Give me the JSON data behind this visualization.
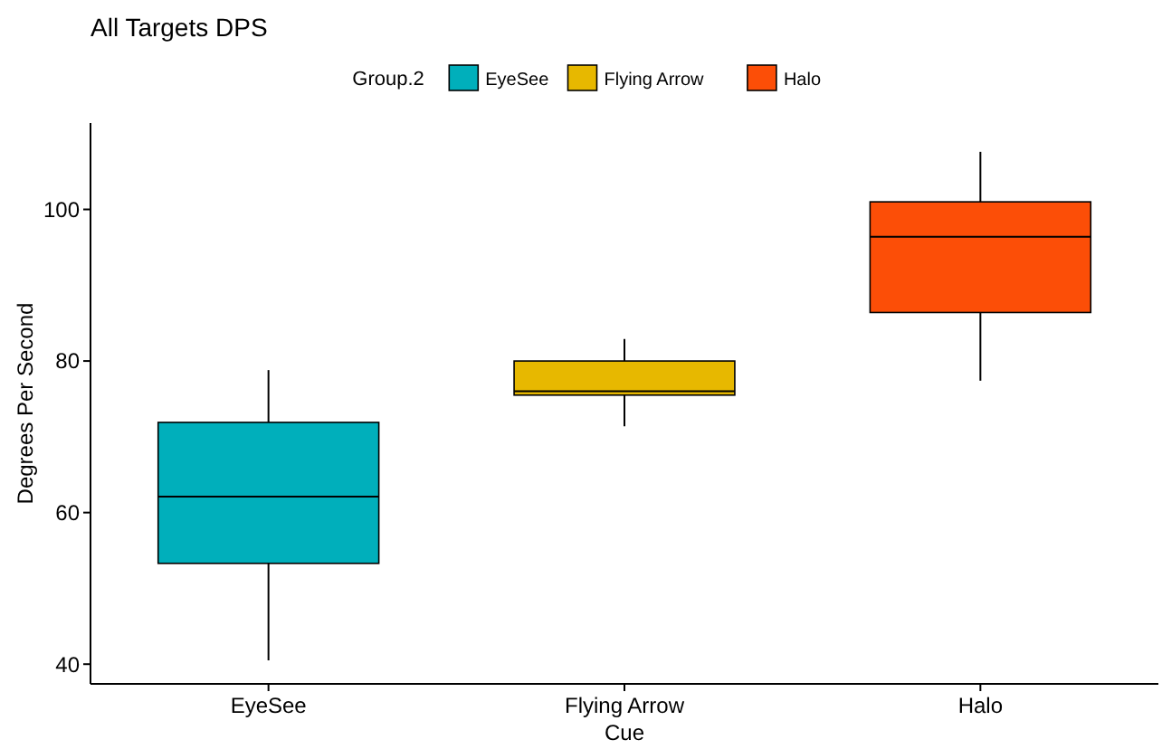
{
  "chart_data": {
    "type": "box",
    "title": "All Targets DPS",
    "xlabel": "Cue",
    "ylabel": "Degrees Per Second",
    "legend_title": "Group.2",
    "legend": "top",
    "grid": false,
    "categories": [
      "EyeSee",
      "Flying Arrow",
      "Halo"
    ],
    "series": [
      {
        "name": "EyeSee",
        "color": "#00afbb",
        "boxes": [
          {
            "low": 40.5,
            "q1": 53.3,
            "median": 62.1,
            "q3": 71.9,
            "high": 78.8
          },
          null,
          null
        ]
      },
      {
        "name": "Flying Arrow",
        "color": "#e7b800",
        "boxes": [
          null,
          {
            "low": 71.4,
            "q1": 75.5,
            "median": 76,
            "q3": 80,
            "high": 82.9
          },
          null
        ]
      },
      {
        "name": "Halo",
        "color": "#fc4e07",
        "boxes": [
          null,
          null,
          {
            "low": 77.4,
            "q1": 86.4,
            "median": 96.4,
            "q3": 101,
            "high": 107.6
          }
        ]
      }
    ],
    "ylim": [
      37.4,
      111.4
    ],
    "yticks": [
      40,
      60,
      80,
      100
    ]
  }
}
